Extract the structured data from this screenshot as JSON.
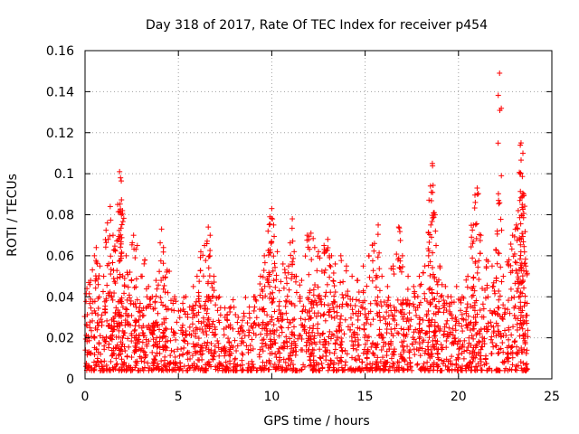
{
  "chart_data": {
    "type": "scatter",
    "title": "Day 318 of 2017, Rate Of TEC Index for receiver p454",
    "xlabel": "GPS time / hours",
    "ylabel": "ROTI / TECUs",
    "xlim": [
      0,
      25
    ],
    "ylim": [
      0,
      0.16
    ],
    "xticks": [
      0,
      5,
      10,
      15,
      20,
      25
    ],
    "yticks": [
      0,
      0.02,
      0.04,
      0.06,
      0.08,
      0.1,
      0.12,
      0.14,
      0.16
    ],
    "xtick_labels": [
      "0",
      "5",
      "10",
      "15",
      "20",
      "25"
    ],
    "ytick_labels": [
      "0",
      "0.02",
      "0.04",
      "0.06",
      "0.08",
      "0.1",
      "0.12",
      "0.14",
      "0.16"
    ],
    "grid": true,
    "marker": "+",
    "color": "#ff0000",
    "series": [
      {
        "name": "ROTI",
        "points": [
          [
            0.1,
            0.044
          ],
          [
            0.3,
            0.048
          ],
          [
            0.5,
            0.06
          ],
          [
            0.6,
            0.064
          ],
          [
            0.8,
            0.055
          ],
          [
            1.0,
            0.05
          ],
          [
            1.2,
            0.076
          ],
          [
            1.35,
            0.084
          ],
          [
            1.5,
            0.07
          ],
          [
            1.6,
            0.063
          ],
          [
            1.75,
            0.085
          ],
          [
            1.85,
            0.101
          ],
          [
            1.9,
            0.098
          ],
          [
            2.0,
            0.082
          ],
          [
            2.2,
            0.06
          ],
          [
            2.4,
            0.052
          ],
          [
            2.6,
            0.07
          ],
          [
            2.8,
            0.065
          ],
          [
            3.0,
            0.05
          ],
          [
            3.2,
            0.058
          ],
          [
            3.4,
            0.045
          ],
          [
            3.6,
            0.04
          ],
          [
            3.8,
            0.048
          ],
          [
            4.1,
            0.073
          ],
          [
            4.2,
            0.064
          ],
          [
            4.4,
            0.053
          ],
          [
            4.8,
            0.04
          ],
          [
            5.2,
            0.025
          ],
          [
            5.5,
            0.03
          ],
          [
            5.8,
            0.045
          ],
          [
            6.0,
            0.05
          ],
          [
            6.2,
            0.062
          ],
          [
            6.4,
            0.065
          ],
          [
            6.6,
            0.074
          ],
          [
            6.7,
            0.07
          ],
          [
            6.9,
            0.05
          ],
          [
            7.2,
            0.04
          ],
          [
            7.5,
            0.03
          ],
          [
            7.8,
            0.035
          ],
          [
            8.2,
            0.03
          ],
          [
            8.5,
            0.032
          ],
          [
            8.8,
            0.035
          ],
          [
            9.1,
            0.04
          ],
          [
            9.4,
            0.05
          ],
          [
            9.6,
            0.06
          ],
          [
            9.8,
            0.072
          ],
          [
            9.9,
            0.079
          ],
          [
            10.0,
            0.083
          ],
          [
            10.1,
            0.075
          ],
          [
            10.3,
            0.062
          ],
          [
            10.6,
            0.056
          ],
          [
            10.9,
            0.055
          ],
          [
            11.1,
            0.078
          ],
          [
            11.3,
            0.05
          ],
          [
            11.6,
            0.048
          ],
          [
            11.9,
            0.07
          ],
          [
            12.1,
            0.071
          ],
          [
            12.3,
            0.064
          ],
          [
            12.5,
            0.062
          ],
          [
            12.8,
            0.065
          ],
          [
            13.0,
            0.068
          ],
          [
            13.2,
            0.06
          ],
          [
            13.4,
            0.056
          ],
          [
            13.7,
            0.06
          ],
          [
            14.0,
            0.055
          ],
          [
            14.3,
            0.05
          ],
          [
            14.6,
            0.048
          ],
          [
            14.9,
            0.055
          ],
          [
            15.2,
            0.06
          ],
          [
            15.5,
            0.066
          ],
          [
            15.7,
            0.075
          ],
          [
            15.9,
            0.05
          ],
          [
            16.2,
            0.045
          ],
          [
            16.5,
            0.055
          ],
          [
            16.8,
            0.074
          ],
          [
            17.0,
            0.06
          ],
          [
            17.3,
            0.05
          ],
          [
            17.6,
            0.045
          ],
          [
            17.9,
            0.05
          ],
          [
            18.2,
            0.055
          ],
          [
            18.4,
            0.06
          ],
          [
            18.5,
            0.094
          ],
          [
            18.6,
            0.105
          ],
          [
            18.7,
            0.081
          ],
          [
            18.8,
            0.065
          ],
          [
            19.0,
            0.055
          ],
          [
            19.3,
            0.045
          ],
          [
            19.6,
            0.04
          ],
          [
            19.9,
            0.045
          ],
          [
            20.2,
            0.04
          ],
          [
            20.5,
            0.05
          ],
          [
            20.8,
            0.075
          ],
          [
            20.9,
            0.086
          ],
          [
            21.0,
            0.093
          ],
          [
            21.2,
            0.07
          ],
          [
            21.5,
            0.058
          ],
          [
            21.8,
            0.055
          ],
          [
            22.0,
            0.063
          ],
          [
            22.2,
            0.149
          ],
          [
            22.4,
            0.05
          ],
          [
            22.7,
            0.058
          ],
          [
            22.9,
            0.07
          ],
          [
            23.1,
            0.075
          ],
          [
            23.2,
            0.082
          ],
          [
            23.3,
            0.1
          ],
          [
            23.35,
            0.115
          ],
          [
            23.45,
            0.11
          ],
          [
            23.5,
            0.09
          ],
          [
            23.6,
            0.055
          ]
        ],
        "baseline_band": [
          0.004,
          0.03
        ],
        "baseline_x_range": [
          0,
          23.7
        ]
      }
    ]
  }
}
